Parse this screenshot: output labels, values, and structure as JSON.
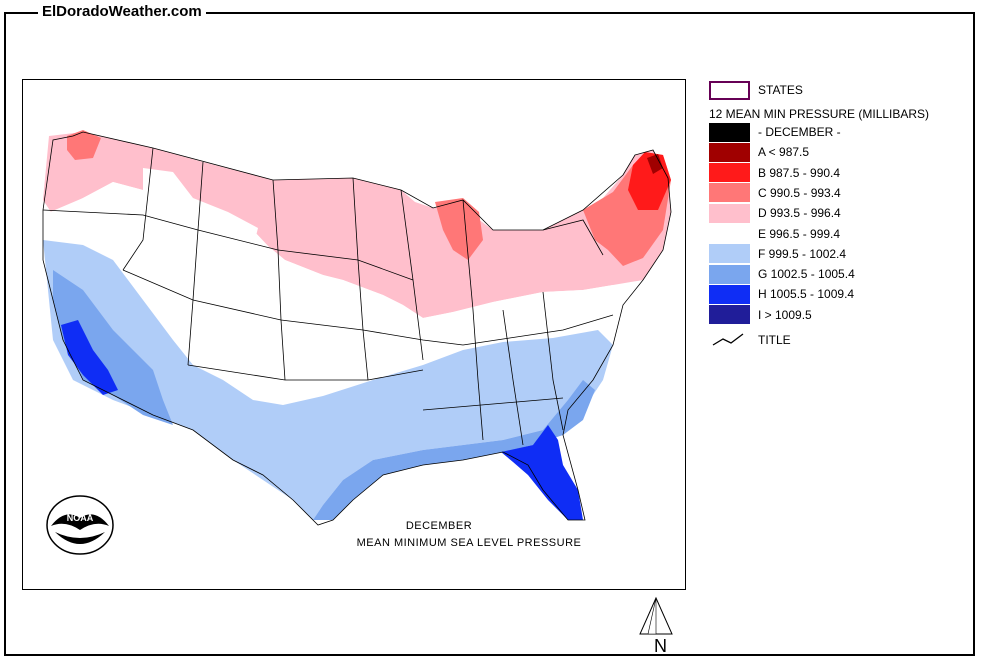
{
  "site": {
    "title": "ElDoradoWeather.com"
  },
  "map": {
    "title_line1": "DECEMBER",
    "title_line2": "MEAN MINIMUM SEA LEVEL PRESSURE",
    "logo_text": "NOAA",
    "north_label": "N"
  },
  "legend": {
    "states_label": "STATES",
    "header": "12 MEAN MIN PRESSURE (MILLIBARS)",
    "classes": [
      {
        "label": "- DECEMBER -",
        "color": "#000000"
      },
      {
        "label": "A < 987.5",
        "color": "#a00000"
      },
      {
        "label": "B 987.5 - 990.4",
        "color": "#ff1a1a"
      },
      {
        "label": "C 990.5 - 993.4",
        "color": "#ff7777"
      },
      {
        "label": "D 993.5 - 996.4",
        "color": "#ffbfcc"
      },
      {
        "label": "E 996.5 - 999.4",
        "color": "#ffffff"
      },
      {
        "label": "F 999.5 - 1002.4",
        "color": "#b0cdf8"
      },
      {
        "label": "G 1002.5 - 1005.4",
        "color": "#7aa6ee"
      },
      {
        "label": "H 1005.5 - 1009.4",
        "color": "#0f2df5"
      },
      {
        "label": "I > 1009.5",
        "color": "#201d99"
      }
    ],
    "title_label": "TITLE"
  }
}
